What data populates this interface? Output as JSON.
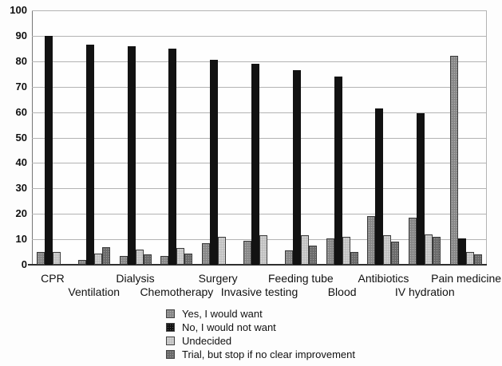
{
  "chart_data": {
    "type": "bar",
    "title": "",
    "xlabel": "",
    "ylabel": "",
    "ylim": [
      0,
      100
    ],
    "ytick_step": 10,
    "grid": true,
    "legend_position": "bottom-center",
    "categories": [
      "CPR",
      "Ventilation",
      "Dialysis",
      "Chemotherapy",
      "Surgery",
      "Invasive testing",
      "Feeding tube",
      "Blood",
      "Antibiotics",
      "IV hydration",
      "Pain medicine"
    ],
    "series": [
      {
        "name": "Yes, I would want",
        "color": "#8d8d8d",
        "values": [
          5,
          2,
          3.5,
          3.5,
          8.5,
          9.5,
          5.5,
          10.5,
          19,
          18.5,
          82
        ]
      },
      {
        "name": "No, I would not want",
        "color": "#121212",
        "values": [
          90,
          86.5,
          86,
          85,
          80.5,
          79,
          76.5,
          74,
          61.5,
          59.5,
          10.5
        ]
      },
      {
        "name": "Undecided",
        "color": "#c9c9c9",
        "values": [
          5,
          4.5,
          6,
          6.5,
          11,
          11.5,
          11.5,
          11,
          11.5,
          12,
          5
        ]
      },
      {
        "name": "Trial, but stop if no clear improvement",
        "color": "#6f6f6f",
        "values": [
          0,
          7,
          4,
          4.5,
          0,
          0,
          7.5,
          5,
          9,
          11,
          4
        ]
      }
    ]
  }
}
